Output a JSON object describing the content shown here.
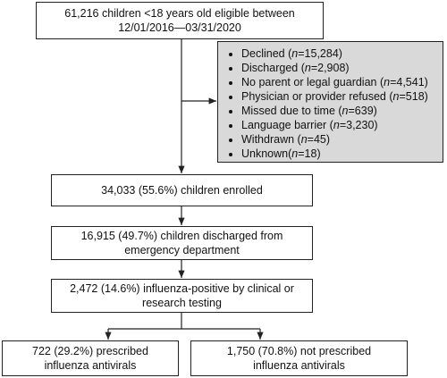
{
  "nodes": [
    {
      "lines": [
        "61,216 children <18 years old eligible between",
        "12/01/2016—03/31/2020"
      ]
    },
    {
      "lines": [
        "34,033 (55.6%) children enrolled"
      ]
    },
    {
      "lines": [
        "16,915 (49.7%) children discharged from",
        "emergency department"
      ]
    },
    {
      "lines": [
        "2,472 (14.6%) influenza-positive by clinical or",
        "research testing"
      ]
    },
    {
      "lines": [
        "722 (29.2%) prescribed",
        "influenza antivirals"
      ]
    },
    {
      "lines": [
        "1,750 (70.8%) not prescribed",
        "influenza antivirals"
      ]
    }
  ],
  "exclusions": {
    "items": [
      [
        "Declined (",
        "n",
        "=15,284)"
      ],
      [
        "Discharged (",
        "n",
        "=2,908)"
      ],
      [
        "No parent or legal guardian (",
        "n",
        "=4,541)"
      ],
      [
        "Physician or provider refused (",
        "n",
        "=518)"
      ],
      [
        "Missed due to time (",
        "n",
        "=639)"
      ],
      [
        "Language barrier (",
        "n",
        "=3,230)"
      ],
      [
        "Withdrawn (",
        "n",
        "=45)"
      ],
      [
        "Unknown(",
        "n",
        "=18)"
      ]
    ]
  }
}
